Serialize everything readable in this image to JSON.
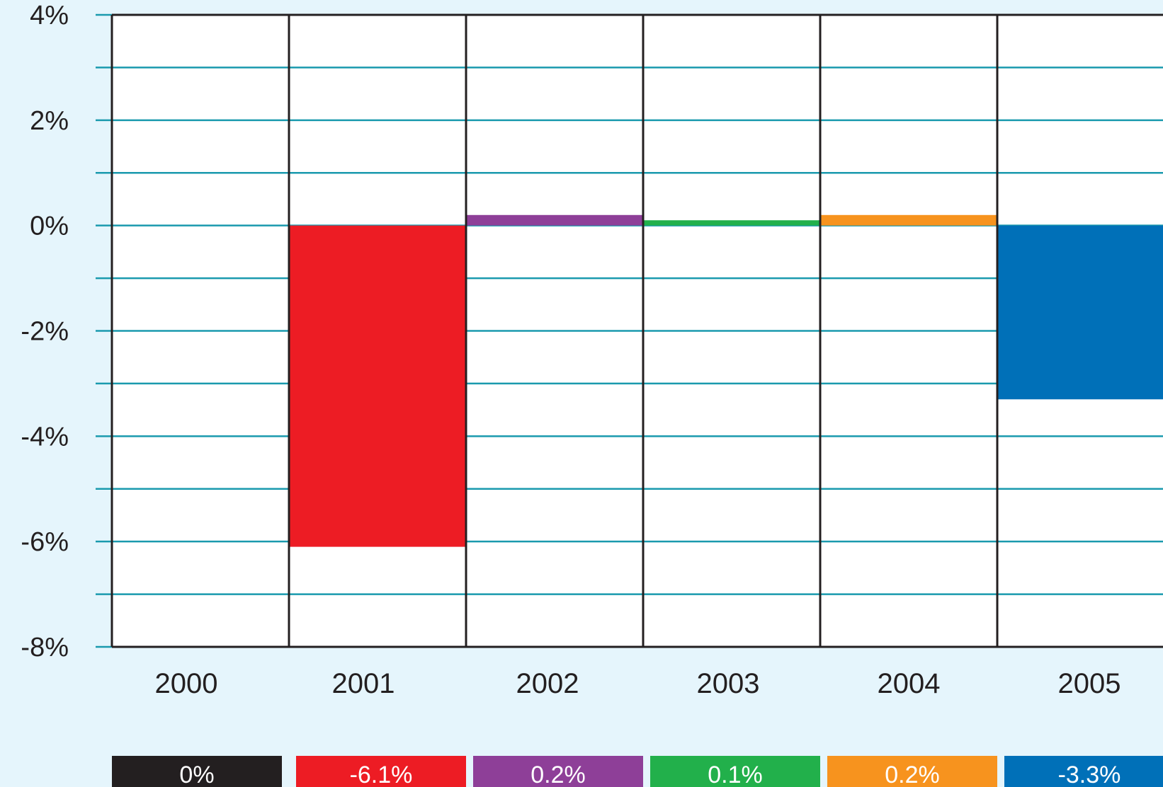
{
  "chart_data": {
    "type": "bar",
    "title": "",
    "xlabel": "",
    "ylabel": "",
    "ylim": [
      -8,
      4
    ],
    "y_tick_values": [
      4,
      2,
      0,
      -2,
      -4,
      -6,
      -8
    ],
    "y_tick_labels": [
      "4%",
      "2%",
      "0%",
      "-2%",
      "-4%",
      "-6%",
      "-8%"
    ],
    "minor_gridlines_every": 1,
    "grid": true,
    "categories": [
      "2000",
      "2001",
      "2002",
      "2003",
      "2004",
      "2005"
    ],
    "values": [
      0,
      -6.1,
      0.2,
      0.1,
      0.2,
      -3.3
    ],
    "value_labels": [
      "0%",
      "-6.1%",
      "0.2%",
      "0.1%",
      "0.2%",
      "-3.3%"
    ],
    "colors": [
      "#231f20",
      "#ed1c24",
      "#8e3f98",
      "#22b04b",
      "#f7931e",
      "#0070b8"
    ],
    "gridline_color": "#1a9aae",
    "plot_background": "#ffffff",
    "page_background": "#e5f5fc"
  }
}
